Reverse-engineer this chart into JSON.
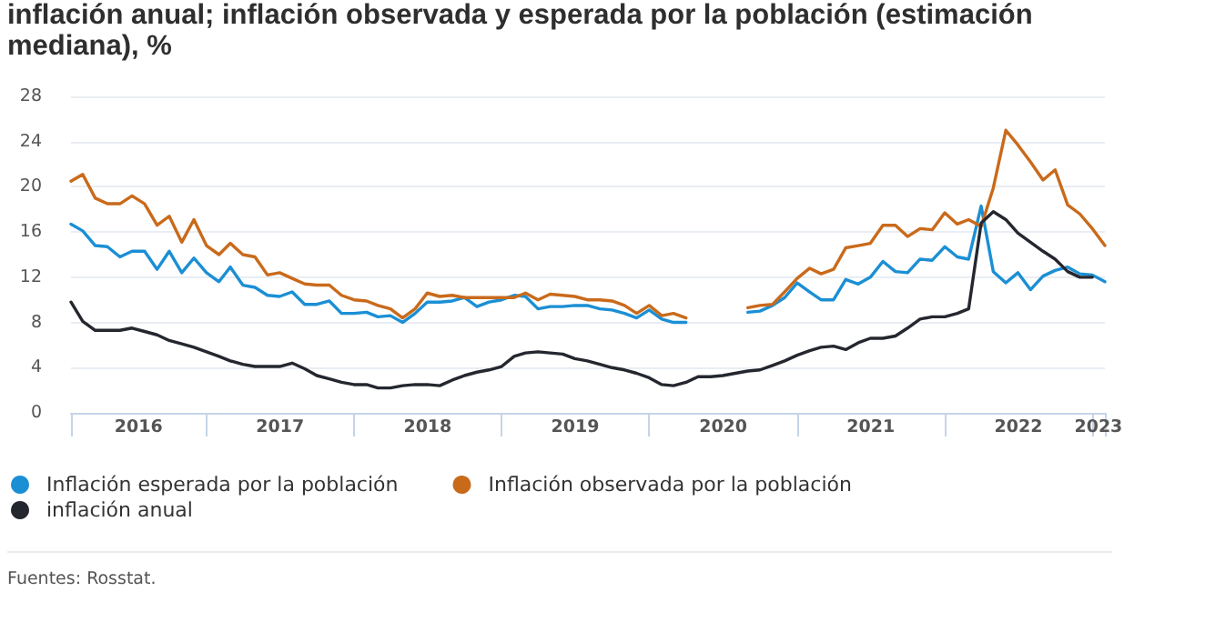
{
  "chart_data": {
    "type": "line",
    "title": "inflación anual; inflación observada y esperada por la población (estimación mediana), %",
    "annotations": [
      "Fuentes: Rosstat."
    ],
    "x": [
      "2016-02",
      "2016-03",
      "2016-04",
      "2016-05",
      "2016-06",
      "2016-07",
      "2016-08",
      "2016-09",
      "2016-10",
      "2016-11",
      "2016-12",
      "2017-01",
      "2017-02",
      "2017-03",
      "2017-04",
      "2017-05",
      "2017-06",
      "2017-07",
      "2017-08",
      "2017-09",
      "2017-10",
      "2017-11",
      "2017-12",
      "2018-01",
      "2018-02",
      "2018-03",
      "2018-04",
      "2018-05",
      "2018-06",
      "2018-07",
      "2018-08",
      "2018-09",
      "2018-10",
      "2018-11",
      "2018-12",
      "2019-01",
      "2019-02",
      "2019-03",
      "2019-04",
      "2019-05",
      "2019-06",
      "2019-07",
      "2019-08",
      "2019-09",
      "2019-10",
      "2019-11",
      "2019-12",
      "2020-01",
      "2020-02",
      "2020-03",
      "2020-04",
      "2020-05",
      "2020-06",
      "2020-07",
      "2020-08",
      "2020-09",
      "2020-10",
      "2020-11",
      "2020-12",
      "2021-01",
      "2021-02",
      "2021-03",
      "2021-04",
      "2021-05",
      "2021-06",
      "2021-07",
      "2021-08",
      "2021-09",
      "2021-10",
      "2021-11",
      "2021-12",
      "2022-01",
      "2022-02",
      "2022-03",
      "2022-04",
      "2022-05",
      "2022-06",
      "2022-07",
      "2022-08",
      "2022-09",
      "2022-10",
      "2022-11",
      "2022-12",
      "2023-01",
      "2023-02"
    ],
    "series": [
      {
        "name": "Inflación esperada por la población",
        "color": "#1b8fd4",
        "values": [
          16.7,
          16.1,
          14.8,
          14.7,
          13.8,
          14.3,
          14.3,
          12.7,
          14.3,
          12.4,
          13.7,
          12.4,
          11.6,
          12.9,
          11.3,
          11.1,
          10.4,
          10.3,
          10.7,
          9.6,
          9.6,
          9.9,
          8.8,
          8.8,
          8.9,
          8.5,
          8.6,
          8.0,
          8.8,
          9.8,
          9.8,
          9.9,
          10.2,
          9.4,
          9.8,
          10.0,
          10.4,
          10.3,
          9.2,
          9.4,
          9.4,
          9.5,
          9.5,
          9.2,
          9.1,
          8.8,
          8.4,
          9.1,
          8.3,
          8.0,
          8.0,
          null,
          null,
          null,
          null,
          8.9,
          9.0,
          9.5,
          10.2,
          11.5,
          10.7,
          10.0,
          10.0,
          11.8,
          11.4,
          12.0,
          13.4,
          12.5,
          12.4,
          13.6,
          13.5,
          14.7,
          13.8,
          13.6,
          18.3,
          12.5,
          11.5,
          12.4,
          10.9,
          12.1,
          12.6,
          12.9,
          12.3,
          12.2,
          11.6
        ]
      },
      {
        "name": "Inflación observada por la población",
        "color": "#c96a1b",
        "values": [
          20.5,
          21.1,
          19.0,
          18.5,
          18.5,
          19.2,
          18.5,
          16.6,
          17.4,
          15.1,
          17.1,
          14.8,
          14.0,
          15.0,
          14.0,
          13.8,
          12.2,
          12.4,
          11.9,
          11.4,
          11.3,
          11.3,
          10.4,
          10.0,
          9.9,
          9.5,
          9.2,
          8.4,
          9.2,
          10.6,
          10.3,
          10.4,
          10.2,
          10.2,
          10.2,
          10.2,
          10.2,
          10.6,
          10.0,
          10.5,
          10.4,
          10.3,
          10.0,
          10.0,
          9.9,
          9.5,
          8.8,
          9.5,
          8.6,
          8.8,
          8.4,
          null,
          null,
          null,
          null,
          9.3,
          9.5,
          9.6,
          10.7,
          11.9,
          12.8,
          12.3,
          12.7,
          14.6,
          14.8,
          15.0,
          16.6,
          16.6,
          15.6,
          16.3,
          16.2,
          17.7,
          16.7,
          17.1,
          16.5,
          19.9,
          25.0,
          23.7,
          22.2,
          20.6,
          21.5,
          18.4,
          17.6,
          16.3,
          14.8
        ]
      },
      {
        "name": "inflación anual",
        "color": "#24272e",
        "values": [
          9.8,
          8.1,
          7.3,
          7.3,
          7.3,
          7.5,
          7.2,
          6.9,
          6.4,
          6.1,
          5.8,
          5.4,
          5.0,
          4.6,
          4.3,
          4.1,
          4.1,
          4.1,
          4.4,
          3.9,
          3.3,
          3.0,
          2.7,
          2.5,
          2.5,
          2.2,
          2.2,
          2.4,
          2.5,
          2.5,
          2.4,
          2.9,
          3.3,
          3.6,
          3.8,
          4.1,
          5.0,
          5.3,
          5.4,
          5.3,
          5.2,
          4.8,
          4.6,
          4.3,
          4.0,
          3.8,
          3.5,
          3.1,
          2.5,
          2.4,
          2.7,
          3.2,
          3.2,
          3.3,
          3.5,
          3.7,
          3.8,
          4.2,
          4.6,
          5.1,
          5.5,
          5.8,
          5.9,
          5.6,
          6.2,
          6.6,
          6.6,
          6.8,
          7.5,
          8.3,
          8.5,
          8.5,
          8.8,
          9.2,
          16.8,
          17.8,
          17.1,
          15.9,
          15.1,
          14.3,
          13.6,
          12.5,
          12.0,
          12.0,
          null
        ]
      }
    ],
    "xlim": [
      "2016-02",
      "2023-02"
    ],
    "xticks": [
      {
        "value": "2016-02",
        "label": null
      },
      {
        "value": "2016-07-17",
        "label": "2016"
      },
      {
        "value": "2017-01",
        "label": null
      },
      {
        "value": "2017-07-02",
        "label": "2017"
      },
      {
        "value": "2018-01",
        "label": null
      },
      {
        "value": "2018-07-02",
        "label": "2018"
      },
      {
        "value": "2019-01",
        "label": null
      },
      {
        "value": "2019-07-02",
        "label": "2019"
      },
      {
        "value": "2020-01",
        "label": null
      },
      {
        "value": "2020-07-02",
        "label": "2020"
      },
      {
        "value": "2021-01",
        "label": null
      },
      {
        "value": "2021-07-02",
        "label": "2021"
      },
      {
        "value": "2022-01",
        "label": null
      },
      {
        "value": "2022-07-02",
        "label": "2022"
      },
      {
        "value": "2023-01",
        "label": null
      },
      {
        "value": "2023-01-16",
        "label": "2023"
      },
      {
        "value": "2023-02",
        "label": null
      }
    ],
    "ylim": [
      0,
      28
    ],
    "yticks": [
      0,
      4,
      8,
      12,
      16,
      20,
      24,
      28
    ],
    "grid": "y",
    "legend": "bottom"
  }
}
